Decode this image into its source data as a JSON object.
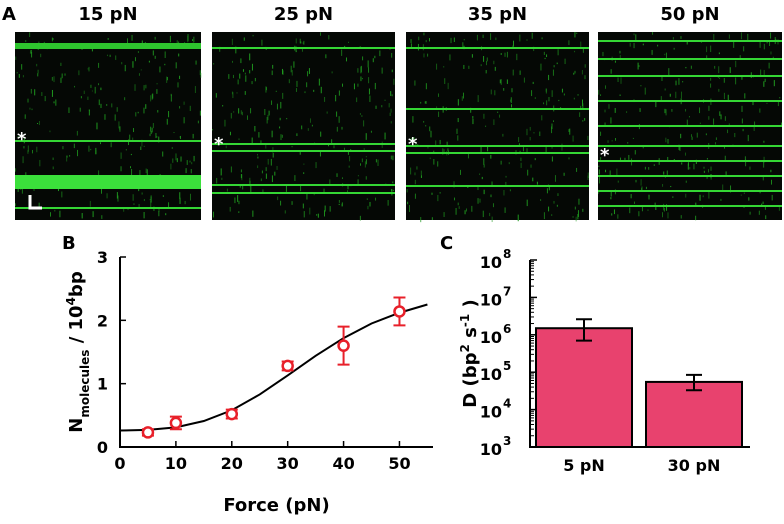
{
  "panel_a": {
    "label": "A",
    "titles": [
      "15 pN",
      "25 pN",
      "35 pN",
      "50 pN"
    ],
    "marker": "*"
  },
  "chart_data": [
    {
      "type": "scatter",
      "panel_label": "B",
      "xlabel": "Force (pN)",
      "ylabel": [
        "N",
        "molecules",
        " / 10",
        "4",
        "bp"
      ],
      "x": [
        5,
        10,
        20,
        30,
        40,
        50
      ],
      "values": [
        0.23,
        0.38,
        0.52,
        1.28,
        1.6,
        2.14
      ],
      "errors": [
        0.05,
        0.1,
        0.07,
        0.07,
        0.3,
        0.22
      ],
      "color": "#e8202a",
      "fit": {
        "x": [
          0,
          5,
          10,
          15,
          20,
          25,
          30,
          35,
          40,
          45,
          50,
          55
        ],
        "values": [
          0.26,
          0.27,
          0.31,
          0.41,
          0.58,
          0.83,
          1.13,
          1.44,
          1.72,
          1.95,
          2.12,
          2.25
        ],
        "color": "#000000"
      },
      "xlim": [
        0,
        56
      ],
      "xticks": [
        0,
        10,
        20,
        30,
        40,
        50
      ],
      "ylim": [
        0,
        3
      ],
      "yticks": [
        0,
        1,
        2,
        3
      ]
    },
    {
      "type": "bar",
      "panel_label": "C",
      "log_scale": true,
      "ylabel": [
        "D (bp",
        "2",
        " s",
        "-1",
        " )"
      ],
      "categories": [
        "5 pN",
        "30 pN"
      ],
      "values": [
        1500000,
        55000
      ],
      "error_low": [
        800000,
        22000
      ],
      "error_high": [
        1100000,
        30000
      ],
      "color": "#e8426e",
      "ylim": [
        1000,
        100000000
      ],
      "yticks": [
        {
          "value": 1000,
          "label": "10",
          "exponent": "3"
        },
        {
          "value": 10000,
          "label": "10",
          "exponent": "4"
        },
        {
          "value": 100000,
          "label": "10",
          "exponent": "5"
        },
        {
          "value": 1000000,
          "label": "10",
          "exponent": "6"
        },
        {
          "value": 10000000,
          "label": "10",
          "exponent": "7"
        },
        {
          "value": 100000000,
          "label": "10",
          "exponent": "8"
        }
      ]
    }
  ]
}
